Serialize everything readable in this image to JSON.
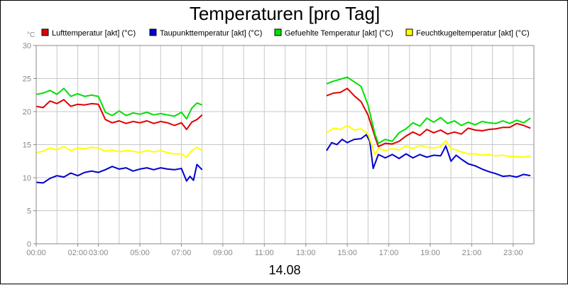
{
  "chart_data": {
    "type": "line",
    "title": "Temperaturen [pro Tag]",
    "date_label": "14.08",
    "y_unit": "°C",
    "ylim": [
      0,
      30
    ],
    "y_ticks": [
      0,
      5,
      10,
      15,
      20,
      25,
      30
    ],
    "xlim": [
      "00:00",
      "24:00"
    ],
    "x_ticks": [
      "00:00",
      "02:00",
      "03:00",
      "05:00",
      "07:00",
      "09:00",
      "11:00",
      "13:00",
      "15:00",
      "17:00",
      "19:00",
      "21:00",
      "23:00"
    ],
    "grid": true,
    "legend_position": "top",
    "series": [
      {
        "name": "Lufttemperatur [akt] (°C)",
        "color": "#e00000",
        "segments": [
          [
            [
              "00:00",
              20.8
            ],
            [
              "00:20",
              20.6
            ],
            [
              "00:40",
              21.6
            ],
            [
              "01:00",
              21.2
            ],
            [
              "01:20",
              21.8
            ],
            [
              "01:40",
              20.8
            ],
            [
              "02:00",
              21.1
            ],
            [
              "02:20",
              21.0
            ],
            [
              "02:40",
              21.2
            ],
            [
              "03:00",
              21.1
            ],
            [
              "03:20",
              18.8
            ],
            [
              "03:40",
              18.3
            ],
            [
              "04:00",
              18.6
            ],
            [
              "04:20",
              18.2
            ],
            [
              "04:40",
              18.5
            ],
            [
              "05:00",
              18.3
            ],
            [
              "05:20",
              18.6
            ],
            [
              "05:40",
              18.2
            ],
            [
              "06:00",
              18.5
            ],
            [
              "06:20",
              18.3
            ],
            [
              "06:40",
              17.9
            ],
            [
              "07:00",
              18.3
            ],
            [
              "07:15",
              17.3
            ],
            [
              "07:30",
              18.4
            ],
            [
              "07:45",
              18.8
            ],
            [
              "08:00",
              19.5
            ]
          ],
          [
            [
              "14:00",
              22.4
            ],
            [
              "14:20",
              22.8
            ],
            [
              "14:40",
              22.9
            ],
            [
              "15:00",
              23.5
            ],
            [
              "15:20",
              22.4
            ],
            [
              "15:40",
              21.5
            ],
            [
              "16:00",
              19.5
            ],
            [
              "16:20",
              16.2
            ],
            [
              "16:30",
              14.7
            ],
            [
              "16:50",
              15.2
            ],
            [
              "17:10",
              15.1
            ],
            [
              "17:30",
              15.5
            ],
            [
              "17:50",
              16.3
            ],
            [
              "18:10",
              16.9
            ],
            [
              "18:30",
              16.4
            ],
            [
              "18:50",
              17.3
            ],
            [
              "19:10",
              16.8
            ],
            [
              "19:30",
              17.2
            ],
            [
              "19:50",
              16.6
            ],
            [
              "20:10",
              16.9
            ],
            [
              "20:30",
              16.6
            ],
            [
              "20:50",
              17.5
            ],
            [
              "21:10",
              17.2
            ],
            [
              "21:30",
              17.1
            ],
            [
              "21:50",
              17.3
            ],
            [
              "22:10",
              17.4
            ],
            [
              "22:30",
              17.6
            ],
            [
              "22:50",
              17.6
            ],
            [
              "23:10",
              18.2
            ],
            [
              "23:30",
              17.9
            ],
            [
              "23:50",
              17.5
            ]
          ]
        ]
      },
      {
        "name": "Taupunkttemperatur [akt] (°C)",
        "color": "#0000d0",
        "segments": [
          [
            [
              "00:00",
              9.3
            ],
            [
              "00:20",
              9.2
            ],
            [
              "00:40",
              9.9
            ],
            [
              "01:00",
              10.3
            ],
            [
              "01:20",
              10.1
            ],
            [
              "01:40",
              10.7
            ],
            [
              "02:00",
              10.3
            ],
            [
              "02:20",
              10.8
            ],
            [
              "02:40",
              11.0
            ],
            [
              "03:00",
              10.8
            ],
            [
              "03:20",
              11.2
            ],
            [
              "03:40",
              11.7
            ],
            [
              "04:00",
              11.3
            ],
            [
              "04:20",
              11.5
            ],
            [
              "04:40",
              11.0
            ],
            [
              "05:00",
              11.3
            ],
            [
              "05:20",
              11.5
            ],
            [
              "05:40",
              11.2
            ],
            [
              "06:00",
              11.5
            ],
            [
              "06:20",
              11.3
            ],
            [
              "06:40",
              11.2
            ],
            [
              "07:00",
              11.4
            ],
            [
              "07:15",
              9.5
            ],
            [
              "07:25",
              10.2
            ],
            [
              "07:35",
              9.6
            ],
            [
              "07:45",
              12.0
            ],
            [
              "08:00",
              11.2
            ]
          ],
          [
            [
              "14:00",
              14.1
            ],
            [
              "14:15",
              15.3
            ],
            [
              "14:30",
              15.0
            ],
            [
              "14:45",
              15.8
            ],
            [
              "15:00",
              15.3
            ],
            [
              "15:20",
              15.8
            ],
            [
              "15:40",
              15.9
            ],
            [
              "15:55",
              16.5
            ],
            [
              "16:05",
              15.5
            ],
            [
              "16:15",
              11.4
            ],
            [
              "16:30",
              13.5
            ],
            [
              "16:50",
              13.0
            ],
            [
              "17:10",
              13.5
            ],
            [
              "17:30",
              12.9
            ],
            [
              "17:50",
              13.6
            ],
            [
              "18:10",
              13.0
            ],
            [
              "18:30",
              13.5
            ],
            [
              "18:50",
              13.1
            ],
            [
              "19:10",
              13.4
            ],
            [
              "19:30",
              13.3
            ],
            [
              "19:45",
              14.8
            ],
            [
              "20:00",
              12.5
            ],
            [
              "20:15",
              13.4
            ],
            [
              "20:30",
              12.8
            ],
            [
              "20:50",
              12.1
            ],
            [
              "21:10",
              11.8
            ],
            [
              "21:30",
              11.3
            ],
            [
              "21:50",
              10.9
            ],
            [
              "22:10",
              10.6
            ],
            [
              "22:30",
              10.2
            ],
            [
              "22:50",
              10.3
            ],
            [
              "23:10",
              10.1
            ],
            [
              "23:30",
              10.5
            ],
            [
              "23:50",
              10.3
            ]
          ]
        ]
      },
      {
        "name": "Gefuehlte Temperatur [akt] (°C)",
        "color": "#00e000",
        "segments": [
          [
            [
              "00:00",
              22.6
            ],
            [
              "00:20",
              22.8
            ],
            [
              "00:40",
              23.2
            ],
            [
              "01:00",
              22.6
            ],
            [
              "01:20",
              23.5
            ],
            [
              "01:40",
              22.3
            ],
            [
              "02:00",
              22.7
            ],
            [
              "02:20",
              22.3
            ],
            [
              "02:40",
              22.5
            ],
            [
              "03:00",
              22.3
            ],
            [
              "03:20",
              19.9
            ],
            [
              "03:40",
              19.4
            ],
            [
              "04:00",
              20.1
            ],
            [
              "04:20",
              19.4
            ],
            [
              "04:40",
              19.8
            ],
            [
              "05:00",
              19.6
            ],
            [
              "05:20",
              19.9
            ],
            [
              "05:40",
              19.5
            ],
            [
              "06:00",
              19.7
            ],
            [
              "06:20",
              19.5
            ],
            [
              "06:40",
              19.3
            ],
            [
              "07:00",
              19.9
            ],
            [
              "07:15",
              18.9
            ],
            [
              "07:30",
              20.5
            ],
            [
              "07:45",
              21.3
            ],
            [
              "08:00",
              21.0
            ]
          ],
          [
            [
              "14:00",
              24.2
            ],
            [
              "14:20",
              24.6
            ],
            [
              "14:40",
              24.9
            ],
            [
              "15:00",
              25.2
            ],
            [
              "15:20",
              24.5
            ],
            [
              "15:40",
              23.8
            ],
            [
              "16:00",
              21.0
            ],
            [
              "16:20",
              16.6
            ],
            [
              "16:30",
              15.2
            ],
            [
              "16:50",
              15.8
            ],
            [
              "17:10",
              15.5
            ],
            [
              "17:30",
              16.8
            ],
            [
              "17:50",
              17.4
            ],
            [
              "18:10",
              18.3
            ],
            [
              "18:30",
              17.8
            ],
            [
              "18:50",
              19.0
            ],
            [
              "19:10",
              18.4
            ],
            [
              "19:30",
              19.1
            ],
            [
              "19:50",
              18.2
            ],
            [
              "20:10",
              18.6
            ],
            [
              "20:30",
              17.9
            ],
            [
              "20:50",
              18.4
            ],
            [
              "21:10",
              18.0
            ],
            [
              "21:30",
              18.5
            ],
            [
              "21:50",
              18.3
            ],
            [
              "22:10",
              18.2
            ],
            [
              "22:30",
              18.6
            ],
            [
              "22:50",
              18.2
            ],
            [
              "23:10",
              18.7
            ],
            [
              "23:30",
              18.3
            ],
            [
              "23:50",
              19.0
            ]
          ]
        ]
      },
      {
        "name": "Feuchtkugeltemperatur [akt] (°C)",
        "color": "#ffff00",
        "segments": [
          [
            [
              "00:00",
              13.8
            ],
            [
              "00:20",
              14.0
            ],
            [
              "00:40",
              14.5
            ],
            [
              "01:00",
              14.2
            ],
            [
              "01:20",
              14.7
            ],
            [
              "01:40",
              14.1
            ],
            [
              "02:00",
              14.5
            ],
            [
              "02:20",
              14.4
            ],
            [
              "02:40",
              14.6
            ],
            [
              "03:00",
              14.5
            ],
            [
              "03:20",
              14.0
            ],
            [
              "03:40",
              14.2
            ],
            [
              "04:00",
              13.9
            ],
            [
              "04:20",
              14.1
            ],
            [
              "04:40",
              14.0
            ],
            [
              "05:00",
              13.8
            ],
            [
              "05:20",
              14.1
            ],
            [
              "05:40",
              13.9
            ],
            [
              "06:00",
              14.1
            ],
            [
              "06:20",
              13.8
            ],
            [
              "06:40",
              13.6
            ],
            [
              "07:00",
              13.6
            ],
            [
              "07:15",
              13.1
            ],
            [
              "07:30",
              14.1
            ],
            [
              "07:45",
              14.6
            ],
            [
              "08:00",
              14.1
            ]
          ],
          [
            [
              "14:00",
              16.8
            ],
            [
              "14:20",
              17.5
            ],
            [
              "14:40",
              17.3
            ],
            [
              "15:00",
              17.9
            ],
            [
              "15:20",
              17.2
            ],
            [
              "15:40",
              17.4
            ],
            [
              "16:00",
              16.6
            ],
            [
              "16:20",
              13.5
            ],
            [
              "16:30",
              14.4
            ],
            [
              "16:50",
              14.1
            ],
            [
              "17:10",
              14.4
            ],
            [
              "17:30",
              14.2
            ],
            [
              "17:50",
              14.8
            ],
            [
              "18:10",
              14.4
            ],
            [
              "18:30",
              14.9
            ],
            [
              "18:50",
              14.6
            ],
            [
              "19:10",
              14.5
            ],
            [
              "19:30",
              14.7
            ],
            [
              "19:45",
              15.6
            ],
            [
              "20:00",
              14.4
            ],
            [
              "20:15",
              14.2
            ],
            [
              "20:30",
              13.9
            ],
            [
              "20:50",
              13.6
            ],
            [
              "21:10",
              13.6
            ],
            [
              "21:30",
              13.4
            ],
            [
              "21:50",
              13.5
            ],
            [
              "22:10",
              13.3
            ],
            [
              "22:30",
              13.4
            ],
            [
              "22:50",
              13.2
            ],
            [
              "23:10",
              13.2
            ],
            [
              "23:30",
              13.1
            ],
            [
              "23:50",
              13.3
            ]
          ]
        ]
      }
    ]
  }
}
